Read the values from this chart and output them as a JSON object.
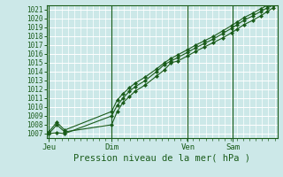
{
  "xlabel": "Pression niveau de la mer( hPa )",
  "bg_color": "#cce8e8",
  "grid_color": "#ffffff",
  "line_color": "#1a5c1a",
  "marker_color": "#1a5c1a",
  "ylim": [
    1006.5,
    1021.5
  ],
  "yticks": [
    1007,
    1008,
    1009,
    1010,
    1011,
    1012,
    1013,
    1014,
    1015,
    1016,
    1017,
    1018,
    1019,
    1020,
    1021
  ],
  "xtick_labels": [
    "Jeu",
    "Dim",
    "Ven",
    "Sam"
  ],
  "xtick_positions": [
    0.0,
    0.28,
    0.62,
    0.82
  ],
  "day_lines": [
    0.0,
    0.28,
    0.62,
    0.82
  ],
  "series1_x": [
    0.0,
    0.035,
    0.07,
    0.28,
    0.305,
    0.33,
    0.36,
    0.385,
    0.43,
    0.48,
    0.515,
    0.545,
    0.575,
    0.62,
    0.655,
    0.695,
    0.735,
    0.775,
    0.815,
    0.84,
    0.87,
    0.91,
    0.945,
    0.975,
    1.0
  ],
  "series1_y": [
    1007.0,
    1008.0,
    1007.2,
    1008.0,
    1009.5,
    1010.5,
    1011.2,
    1011.8,
    1012.5,
    1013.5,
    1014.2,
    1015.0,
    1015.2,
    1015.8,
    1016.3,
    1016.8,
    1017.3,
    1017.8,
    1018.4,
    1018.8,
    1019.3,
    1019.8,
    1020.3,
    1020.8,
    1021.2
  ],
  "series2_x": [
    0.0,
    0.035,
    0.07,
    0.28,
    0.305,
    0.33,
    0.36,
    0.385,
    0.43,
    0.48,
    0.515,
    0.545,
    0.575,
    0.62,
    0.655,
    0.695,
    0.735,
    0.775,
    0.815,
    0.84,
    0.87,
    0.91,
    0.945,
    0.975,
    1.0
  ],
  "series2_y": [
    1007.0,
    1007.1,
    1007.0,
    1009.0,
    1010.2,
    1011.0,
    1011.8,
    1012.3,
    1013.0,
    1014.0,
    1014.8,
    1015.2,
    1015.6,
    1016.2,
    1016.7,
    1017.2,
    1017.7,
    1018.3,
    1018.9,
    1019.3,
    1019.8,
    1020.3,
    1020.8,
    1021.2,
    1021.5
  ],
  "series3_x": [
    0.0,
    0.035,
    0.07,
    0.28,
    0.305,
    0.33,
    0.36,
    0.385,
    0.43,
    0.48,
    0.515,
    0.545,
    0.575,
    0.62,
    0.655,
    0.695,
    0.735,
    0.775,
    0.815,
    0.84,
    0.87,
    0.91,
    0.945,
    0.975,
    1.0
  ],
  "series3_y": [
    1007.2,
    1008.3,
    1007.4,
    1009.5,
    1010.8,
    1011.5,
    1012.2,
    1012.7,
    1013.4,
    1014.3,
    1015.0,
    1015.5,
    1015.9,
    1016.5,
    1017.0,
    1017.5,
    1018.0,
    1018.6,
    1019.2,
    1019.6,
    1020.1,
    1020.6,
    1021.1,
    1021.5,
    1021.8
  ]
}
